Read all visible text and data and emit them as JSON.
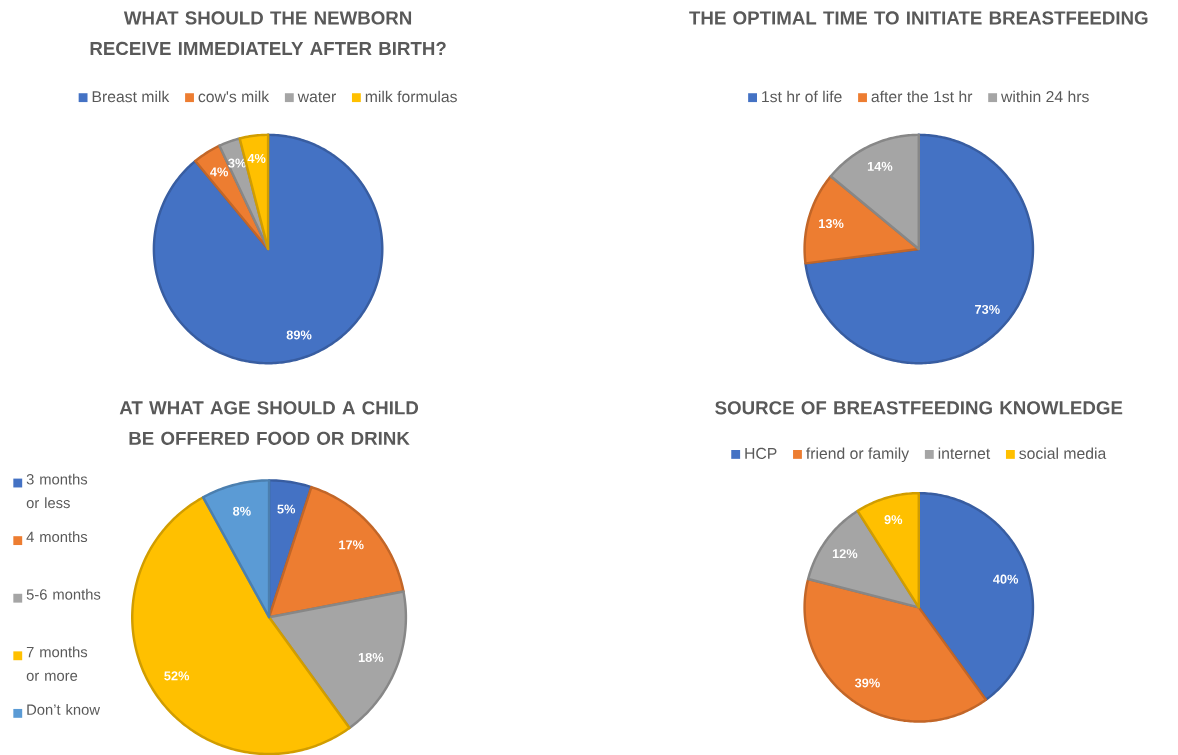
{
  "chart_data": [
    {
      "type": "pie",
      "title": "WHAT SHOULD THE NEWBORN RECEIVE IMMEDIATELY AFTER BIRTH?",
      "categories": [
        "Breast milk",
        "cow's milk",
        "water",
        "milk formulas"
      ],
      "values": [
        89,
        4,
        3,
        4
      ],
      "colors": [
        "#4472c4",
        "#ed7d31",
        "#a5a5a5",
        "#ffc000"
      ],
      "value_labels": [
        "89%",
        "4%",
        "3%",
        "4%"
      ],
      "legend": "top"
    },
    {
      "type": "pie",
      "title": "THE OPTIMAL TIME TO INITIATE BREASTFEEDING",
      "categories": [
        "1st hr of life",
        "after the 1st hr",
        "within 24 hrs"
      ],
      "values": [
        73,
        13,
        14
      ],
      "colors": [
        "#4472c4",
        "#ed7d31",
        "#a5a5a5"
      ],
      "value_labels": [
        "73%",
        "13%",
        "14%"
      ],
      "legend": "top"
    },
    {
      "type": "pie",
      "title": "AT WHAT AGE SHOULD A CHILD BE OFFERED FOOD OR DRINK",
      "categories": [
        "3 months or less",
        "4 months",
        "5-6 months",
        "7 months or more",
        "Don’t know"
      ],
      "values": [
        5,
        17,
        18,
        52,
        8
      ],
      "colors": [
        "#4472c4",
        "#ed7d31",
        "#a5a5a5",
        "#ffc000",
        "#5b9bd5"
      ],
      "value_labels": [
        "5%",
        "17%",
        "18%",
        "52%",
        "8%"
      ],
      "legend": "left"
    },
    {
      "type": "pie",
      "title": "SOURCE OF BREASTFEEDING KNOWLEDGE",
      "categories": [
        "HCP",
        "friend or family",
        "internet",
        "social media"
      ],
      "values": [
        40,
        39,
        12,
        9
      ],
      "colors": [
        "#4472c4",
        "#ed7d31",
        "#a5a5a5",
        "#ffc000"
      ],
      "value_labels": [
        "40%",
        "39%",
        "12%",
        "9%"
      ],
      "legend": "top"
    }
  ]
}
